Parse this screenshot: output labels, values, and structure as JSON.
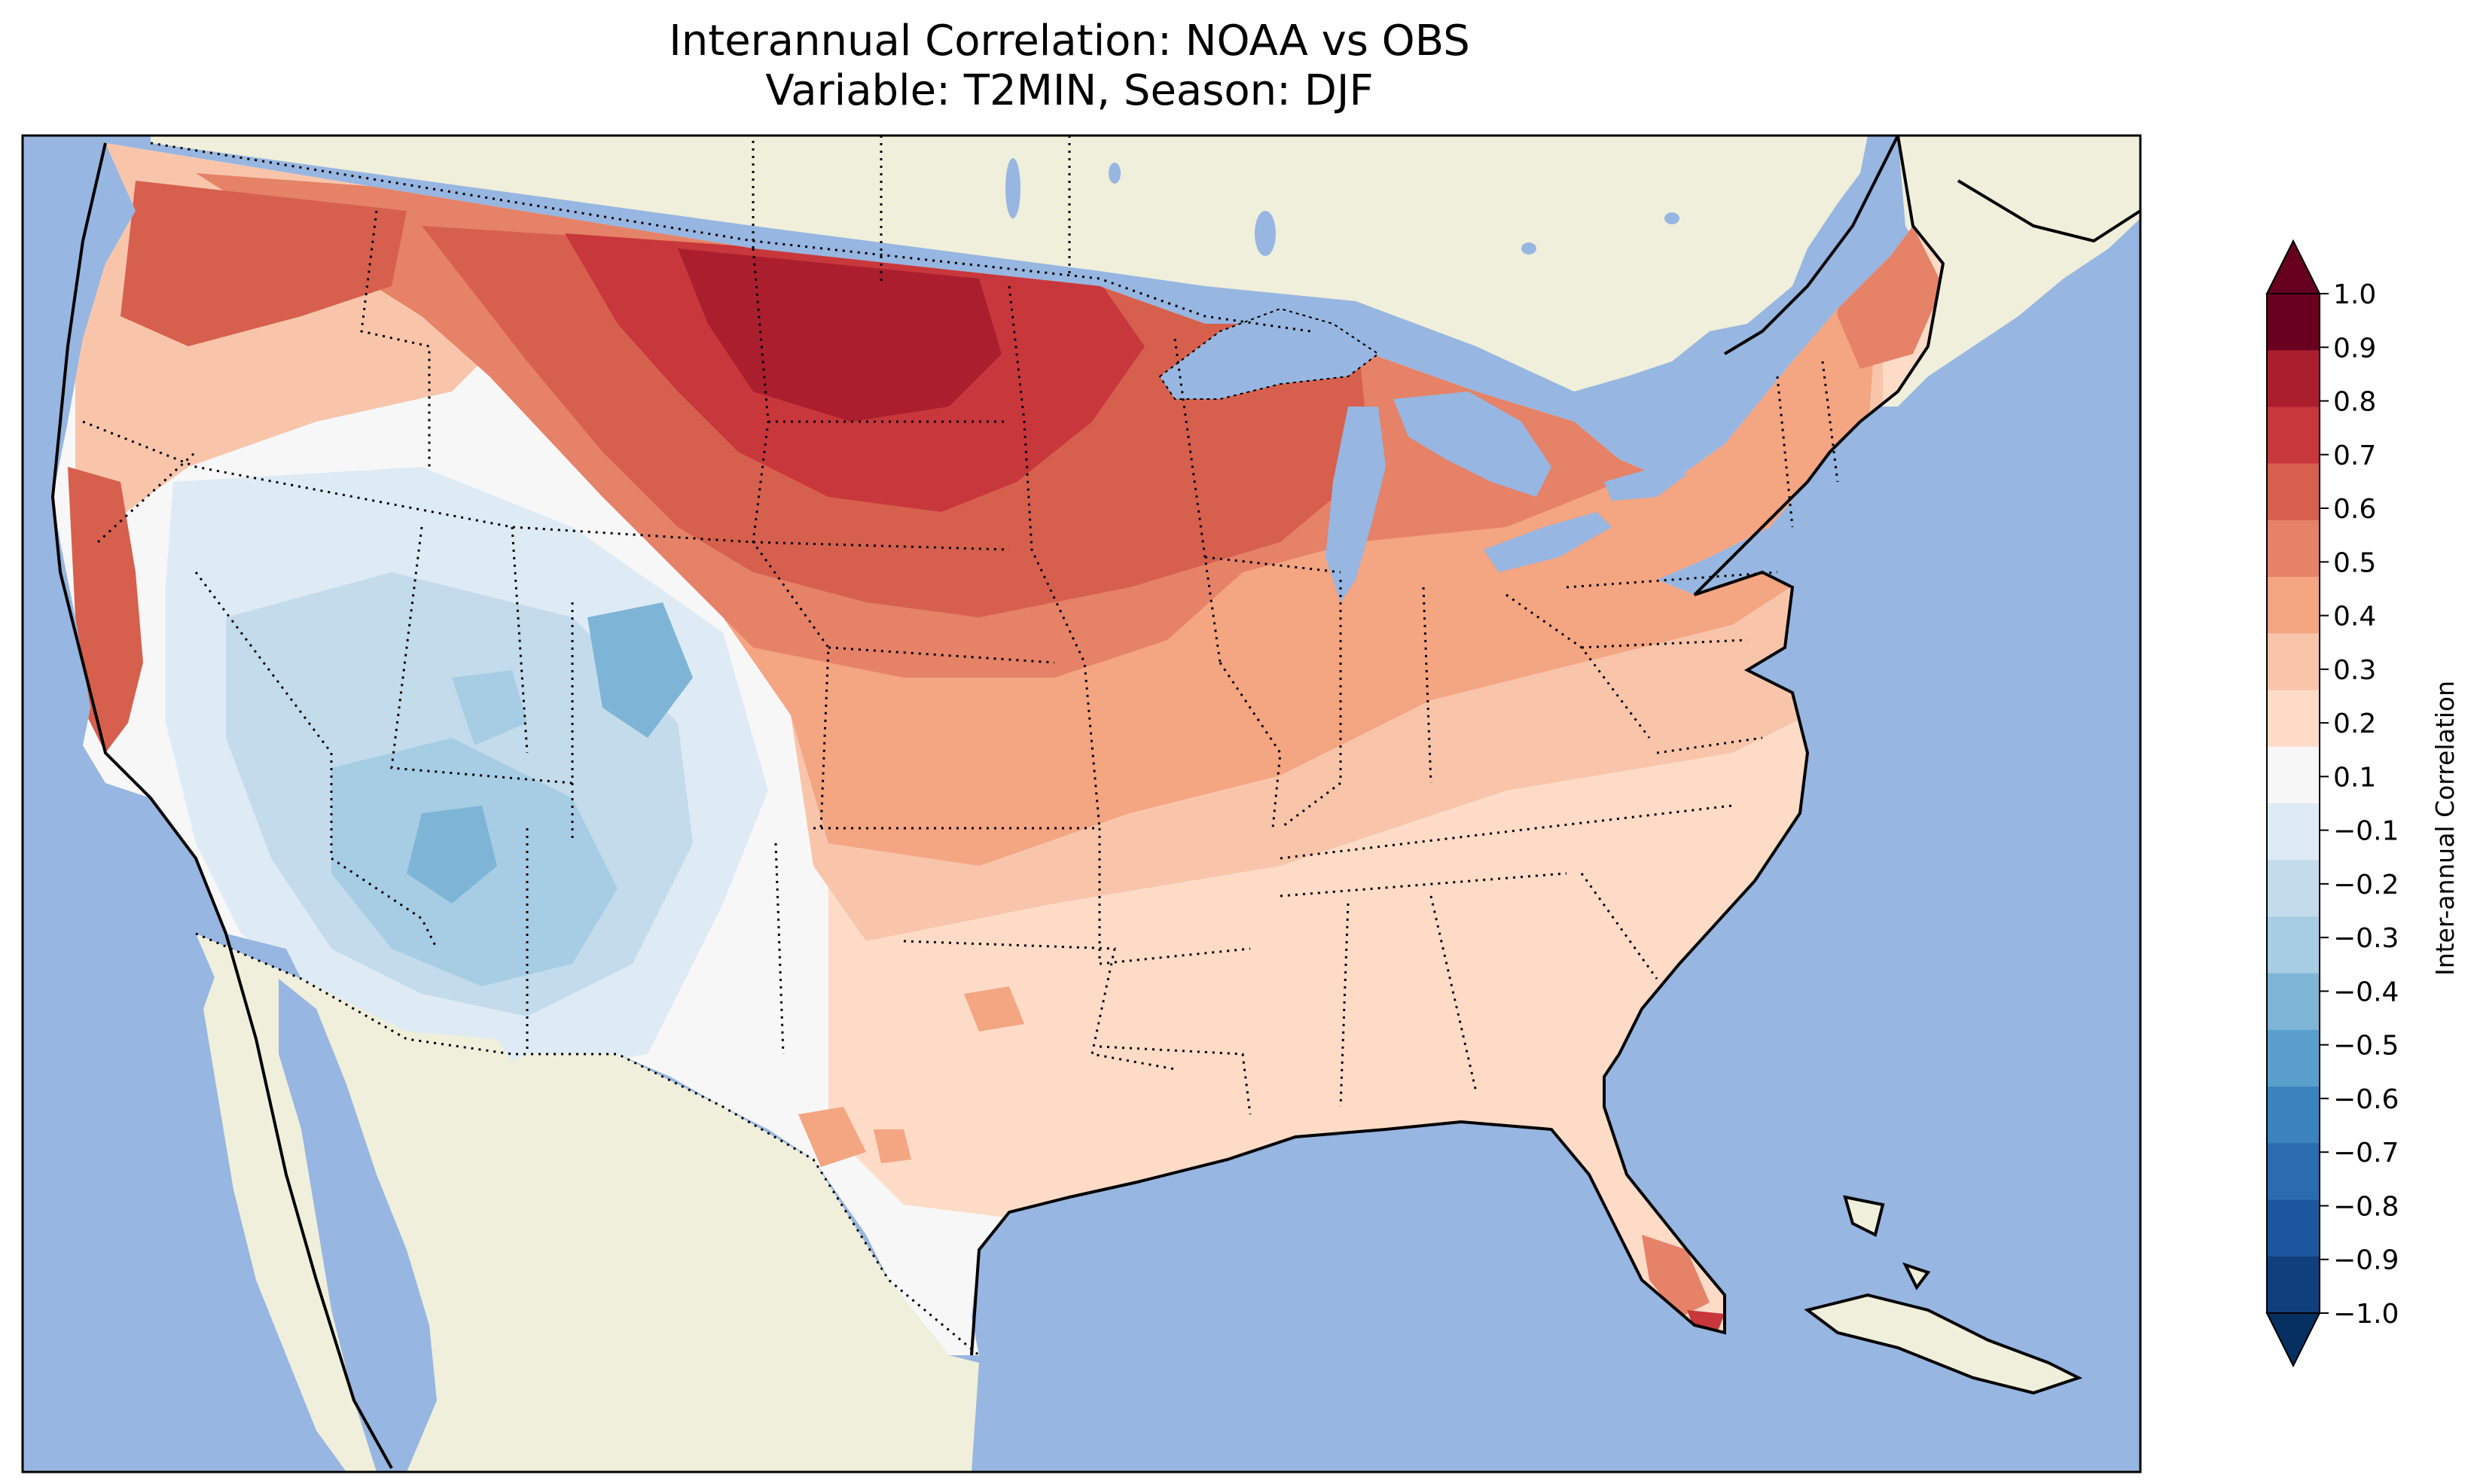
{
  "title": {
    "line1": "Interannual Correlation: NOAA vs OBS",
    "line2": "Variable: T2MIN, Season: DJF"
  },
  "map": {
    "ocean_color": "#97b6e1",
    "land_color": "#efefdb",
    "lake_color": "#97b6e1",
    "nodata_color": "#f4f4f4"
  },
  "colorbar": {
    "label": "Inter-annual Correlation",
    "colormap": "RdBu_r",
    "range": [
      -1.0,
      1.0
    ],
    "extend": "both",
    "tick_labels": [
      "1.0",
      "0.9",
      "0.8",
      "0.7",
      "0.6",
      "0.5",
      "0.4",
      "0.3",
      "0.2",
      "0.1",
      "−0.1",
      "−0.2",
      "−0.3",
      "−0.4",
      "−0.5",
      "−0.6",
      "−0.7",
      "−0.8",
      "−0.9",
      "−1.0"
    ],
    "bins": [
      "#6a0020",
      "#aa1e2e",
      "#c8373c",
      "#d6604d",
      "#e58267",
      "#f4a582",
      "#f8c5ab",
      "#fddbc7",
      "#f7f7f7",
      "#deebf4",
      "#c3dbeb",
      "#a6cde4",
      "#7eb5d6",
      "#5a9fcc",
      "#3b83be",
      "#2b6cb0",
      "#1c569e",
      "#0f3f7c"
    ],
    "extend_max_color": "#67001f",
    "extend_min_color": "#053061"
  }
}
